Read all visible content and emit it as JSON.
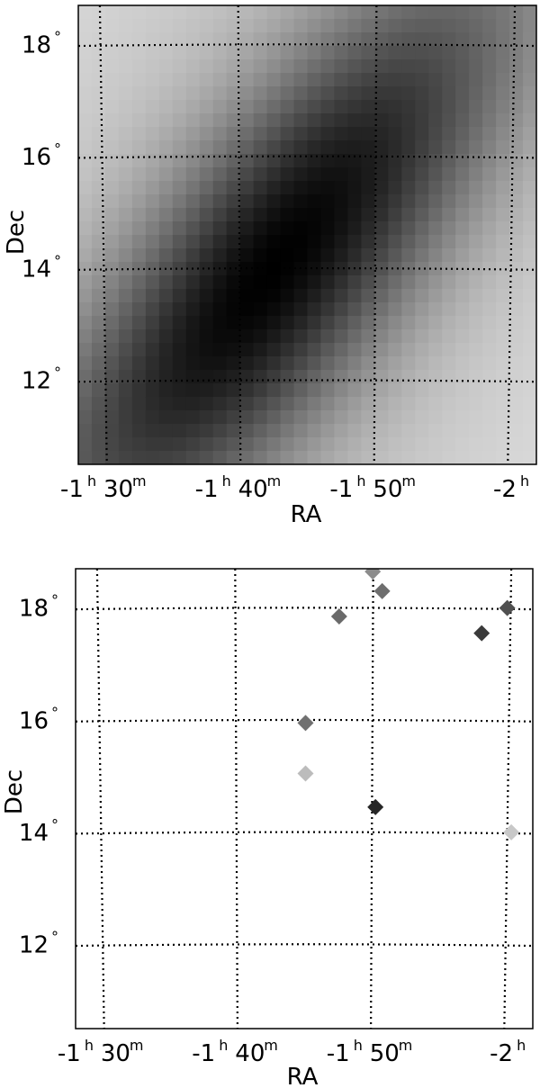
{
  "chart_data": [
    {
      "type": "heatmap",
      "colormap": "grayscale (dark = high)",
      "xlabel": "RA",
      "ylabel": "Dec",
      "xlim_min": [
        88,
        122
      ],
      "ylim_deg": [
        10.5,
        18.7
      ],
      "dec_ticks": [
        {
          "value": 12,
          "label": "12",
          "unit": "°"
        },
        {
          "value": 14,
          "label": "14",
          "unit": "°"
        },
        {
          "value": 16,
          "label": "16",
          "unit": "°"
        },
        {
          "value": 18,
          "label": "18",
          "unit": "°"
        }
      ],
      "ra_ticks": [
        {
          "value": 90,
          "h": "-1",
          "hsup": "h",
          "m": "30",
          "msup": "m"
        },
        {
          "value": 100,
          "h": "-1",
          "hsup": "h",
          "m": "40",
          "msup": "m"
        },
        {
          "value": 110,
          "h": "-1",
          "hsup": "h",
          "m": "50",
          "msup": "m"
        },
        {
          "value": 120,
          "h": "-2",
          "hsup": "h",
          "m": "",
          "msup": ""
        }
      ],
      "peak": {
        "ra_min": 102.5,
        "dec": 14.0,
        "major_axis_angle_deg": 40,
        "major_sigma": 4.2,
        "minor_sigma": 1.4
      },
      "grid": true
    },
    {
      "type": "scatter",
      "marker": "diamond",
      "xlabel": "RA",
      "ylabel": "Dec",
      "xlim_min": [
        88,
        122
      ],
      "ylim_deg": [
        10.5,
        18.7
      ],
      "dec_ticks": [
        {
          "value": 12,
          "label": "12",
          "unit": "°"
        },
        {
          "value": 14,
          "label": "14",
          "unit": "°"
        },
        {
          "value": 16,
          "label": "16",
          "unit": "°"
        },
        {
          "value": 18,
          "label": "18",
          "unit": "°"
        }
      ],
      "ra_ticks": [
        {
          "value": 90,
          "h": "-1",
          "hsup": "h",
          "m": "30",
          "msup": "m"
        },
        {
          "value": 100,
          "h": "-1",
          "hsup": "h",
          "m": "40",
          "msup": "m"
        },
        {
          "value": 110,
          "h": "-1",
          "hsup": "h",
          "m": "50",
          "msup": "m"
        },
        {
          "value": 120,
          "h": "-2",
          "hsup": "h",
          "m": "",
          "msup": ""
        }
      ],
      "points": [
        {
          "ra": 105.1,
          "dec": 15.95,
          "color": "#707070"
        },
        {
          "ra": 105.1,
          "dec": 15.05,
          "color": "#bcbcbc"
        },
        {
          "ra": 107.6,
          "dec": 17.85,
          "color": "#6a6a6a"
        },
        {
          "ra": 110.1,
          "dec": 18.65,
          "color": "#8c8c8c"
        },
        {
          "ra": 110.8,
          "dec": 18.3,
          "color": "#6e6e6e"
        },
        {
          "ra": 110.3,
          "dec": 14.45,
          "color": "#262626"
        },
        {
          "ra": 118.2,
          "dec": 17.55,
          "color": "#3a3a3a"
        },
        {
          "ra": 120.1,
          "dec": 18.0,
          "color": "#505050"
        },
        {
          "ra": 120.4,
          "dec": 14.0,
          "color": "#c8c8c8"
        }
      ],
      "grid": true
    }
  ]
}
